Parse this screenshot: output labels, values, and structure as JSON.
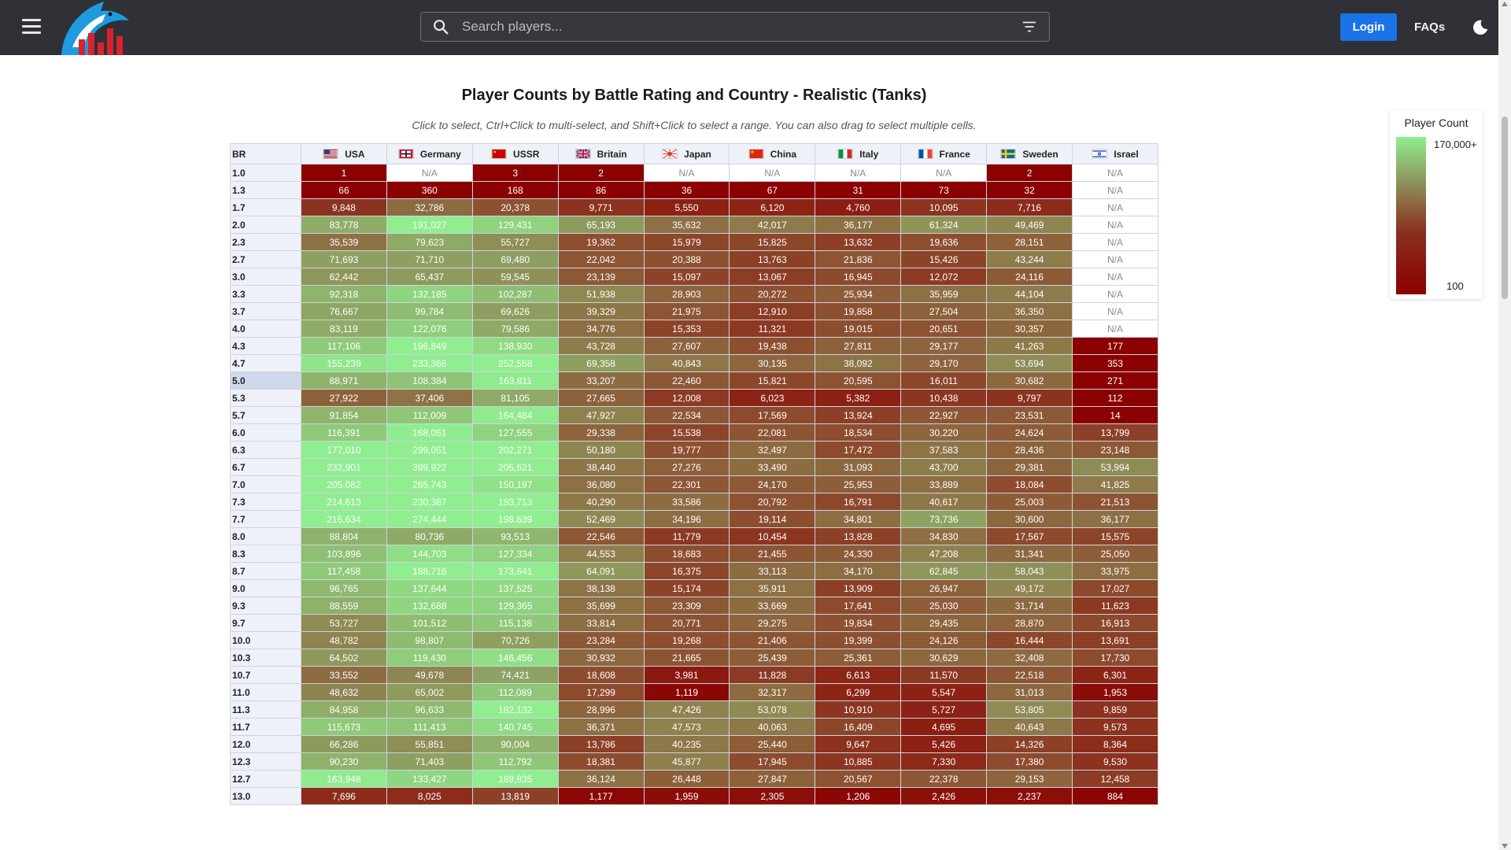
{
  "header": {
    "search_placeholder": "Search players...",
    "login_label": "Login",
    "faqs_label": "FAQs",
    "icons": [
      "hamburger-icon",
      "shark-logo-icon",
      "search-icon",
      "filter-icon",
      "moon-icon"
    ]
  },
  "page": {
    "title": "Player Counts by Battle Rating and Country - Realistic (Tanks)",
    "subtitle": "Click to select, Ctrl+Click to multi-select, and Shift+Click to select a range. You can also drag to select multiple cells."
  },
  "legend": {
    "title": "Player Count",
    "max_label": "170,000+",
    "min_label": "100"
  },
  "colors": {
    "high": "#90ee90",
    "low": "#8b0000",
    "header_bg": "#2f3136",
    "accent": "#1a73e8"
  },
  "table": {
    "br_header": "BR",
    "selected_br": "5.0",
    "countries": [
      "USA",
      "Germany",
      "USSR",
      "Britain",
      "Japan",
      "China",
      "Italy",
      "France",
      "Sweden",
      "Israel"
    ],
    "rows": [
      {
        "br": "1.0",
        "cells": [
          "1",
          "N/A",
          "3",
          "2",
          "N/A",
          "N/A",
          "N/A",
          "N/A",
          "2",
          "N/A"
        ]
      },
      {
        "br": "1.3",
        "cells": [
          "66",
          "360",
          "168",
          "86",
          "36",
          "67",
          "31",
          "73",
          "32",
          "N/A"
        ]
      },
      {
        "br": "1.7",
        "cells": [
          "9,848",
          "32,786",
          "20,378",
          "9,771",
          "5,550",
          "6,120",
          "4,760",
          "10,095",
          "7,716",
          "N/A"
        ]
      },
      {
        "br": "2.0",
        "cells": [
          "83,778",
          "191,027",
          "129,431",
          "65,193",
          "35,632",
          "42,017",
          "36,177",
          "61,324",
          "49,469",
          "N/A"
        ]
      },
      {
        "br": "2.3",
        "cells": [
          "35,539",
          "79,623",
          "55,727",
          "19,362",
          "15,979",
          "15,825",
          "13,632",
          "19,636",
          "28,151",
          "N/A"
        ]
      },
      {
        "br": "2.7",
        "cells": [
          "71,693",
          "71,710",
          "69,480",
          "22,042",
          "20,388",
          "13,763",
          "21,836",
          "15,426",
          "43,244",
          "N/A"
        ]
      },
      {
        "br": "3.0",
        "cells": [
          "62,442",
          "65,437",
          "59,545",
          "23,139",
          "15,097",
          "13,067",
          "16,945",
          "12,072",
          "24,116",
          "N/A"
        ]
      },
      {
        "br": "3.3",
        "cells": [
          "92,318",
          "132,185",
          "102,287",
          "51,938",
          "28,903",
          "20,272",
          "25,934",
          "35,959",
          "44,104",
          "N/A"
        ]
      },
      {
        "br": "3.7",
        "cells": [
          "76,667",
          "99,784",
          "69,626",
          "39,329",
          "21,975",
          "12,910",
          "19,858",
          "27,504",
          "36,350",
          "N/A"
        ]
      },
      {
        "br": "4.0",
        "cells": [
          "83,119",
          "122,076",
          "79,586",
          "34,776",
          "15,353",
          "11,321",
          "19,015",
          "20,651",
          "30,357",
          "N/A"
        ]
      },
      {
        "br": "4.3",
        "cells": [
          "117,106",
          "196,849",
          "138,930",
          "43,728",
          "27,607",
          "19,438",
          "27,811",
          "29,177",
          "41,263",
          "177"
        ]
      },
      {
        "br": "4.7",
        "cells": [
          "155,239",
          "233,366",
          "252,558",
          "69,358",
          "40,843",
          "30,135",
          "38,092",
          "29,170",
          "53,694",
          "353"
        ]
      },
      {
        "br": "5.0",
        "cells": [
          "88,971",
          "108,384",
          "163,811",
          "33,207",
          "22,460",
          "15,821",
          "20,595",
          "16,011",
          "30,682",
          "271"
        ]
      },
      {
        "br": "5.3",
        "cells": [
          "27,922",
          "37,406",
          "81,105",
          "27,665",
          "12,008",
          "6,023",
          "5,382",
          "10,438",
          "9,797",
          "112"
        ]
      },
      {
        "br": "5.7",
        "cells": [
          "91,854",
          "112,009",
          "164,484",
          "47,927",
          "22,534",
          "17,569",
          "13,924",
          "22,927",
          "23,531",
          "14"
        ]
      },
      {
        "br": "6.0",
        "cells": [
          "116,391",
          "168,051",
          "127,555",
          "29,338",
          "15,538",
          "22,081",
          "18,534",
          "30,220",
          "24,624",
          "13,799"
        ]
      },
      {
        "br": "6.3",
        "cells": [
          "177,010",
          "299,051",
          "202,271",
          "50,180",
          "19,777",
          "32,497",
          "17,472",
          "37,583",
          "28,436",
          "23,148"
        ]
      },
      {
        "br": "6.7",
        "cells": [
          "232,901",
          "399,922",
          "205,621",
          "38,440",
          "27,276",
          "33,490",
          "31,093",
          "43,700",
          "29,381",
          "53,994"
        ]
      },
      {
        "br": "7.0",
        "cells": [
          "205,082",
          "265,743",
          "150,197",
          "36,080",
          "22,301",
          "24,170",
          "25,953",
          "33,889",
          "18,084",
          "41,825"
        ]
      },
      {
        "br": "7.3",
        "cells": [
          "214,613",
          "230,387",
          "193,713",
          "40,290",
          "33,586",
          "20,792",
          "16,791",
          "40,617",
          "25,003",
          "21,513"
        ]
      },
      {
        "br": "7.7",
        "cells": [
          "215,634",
          "274,444",
          "198,639",
          "52,469",
          "34,196",
          "19,114",
          "34,801",
          "73,736",
          "30,600",
          "36,177"
        ]
      },
      {
        "br": "8.0",
        "cells": [
          "88,804",
          "80,736",
          "93,513",
          "22,546",
          "11,779",
          "10,454",
          "13,828",
          "34,830",
          "17,567",
          "15,575"
        ]
      },
      {
        "br": "8.3",
        "cells": [
          "103,896",
          "144,703",
          "127,334",
          "44,553",
          "18,683",
          "21,455",
          "24,330",
          "47,208",
          "31,341",
          "25,050"
        ]
      },
      {
        "br": "8.7",
        "cells": [
          "117,458",
          "188,716",
          "173,641",
          "64,091",
          "16,375",
          "33,113",
          "34,170",
          "62,845",
          "58,043",
          "33,975"
        ]
      },
      {
        "br": "9.0",
        "cells": [
          "96,765",
          "137,644",
          "137,525",
          "38,138",
          "15,174",
          "35,911",
          "13,909",
          "26,947",
          "49,172",
          "17,027"
        ]
      },
      {
        "br": "9.3",
        "cells": [
          "88,559",
          "132,688",
          "129,365",
          "35,699",
          "23,309",
          "33,669",
          "17,641",
          "25,030",
          "31,714",
          "11,623"
        ]
      },
      {
        "br": "9.7",
        "cells": [
          "53,727",
          "101,512",
          "115,138",
          "33,814",
          "20,771",
          "29,275",
          "19,834",
          "29,435",
          "28,870",
          "16,913"
        ]
      },
      {
        "br": "10.0",
        "cells": [
          "48,782",
          "98,807",
          "70,726",
          "23,284",
          "19,268",
          "21,406",
          "19,399",
          "24,126",
          "16,444",
          "13,691"
        ]
      },
      {
        "br": "10.3",
        "cells": [
          "64,502",
          "119,430",
          "146,456",
          "30,932",
          "21,665",
          "25,439",
          "25,361",
          "30,629",
          "32,408",
          "17,730"
        ]
      },
      {
        "br": "10.7",
        "cells": [
          "33,552",
          "49,678",
          "74,421",
          "18,608",
          "3,981",
          "11,828",
          "6,613",
          "11,570",
          "22,518",
          "6,301"
        ]
      },
      {
        "br": "11.0",
        "cells": [
          "48,632",
          "65,002",
          "112,089",
          "17,299",
          "1,119",
          "32,317",
          "6,299",
          "5,547",
          "31,013",
          "1,953"
        ]
      },
      {
        "br": "11.3",
        "cells": [
          "84,958",
          "96,633",
          "182,132",
          "28,996",
          "47,426",
          "53,078",
          "10,910",
          "5,727",
          "53,805",
          "9,859"
        ]
      },
      {
        "br": "11.7",
        "cells": [
          "115,673",
          "111,413",
          "140,745",
          "36,371",
          "47,573",
          "40,063",
          "16,409",
          "4,695",
          "40,643",
          "9,573"
        ]
      },
      {
        "br": "12.0",
        "cells": [
          "66,286",
          "55,851",
          "90,004",
          "13,786",
          "40,235",
          "25,440",
          "9,647",
          "5,426",
          "14,326",
          "8,364"
        ]
      },
      {
        "br": "12.3",
        "cells": [
          "90,230",
          "71,403",
          "112,792",
          "18,381",
          "45,877",
          "17,945",
          "10,885",
          "7,330",
          "17,380",
          "9,530"
        ]
      },
      {
        "br": "12.7",
        "cells": [
          "163,948",
          "133,427",
          "189,835",
          "36,124",
          "26,448",
          "27,847",
          "20,567",
          "22,378",
          "29,153",
          "12,458"
        ]
      },
      {
        "br": "13.0",
        "cells": [
          "7,696",
          "8,025",
          "13,819",
          "1,177",
          "1,959",
          "2,305",
          "1,206",
          "2,426",
          "2,237",
          "884"
        ]
      }
    ]
  }
}
